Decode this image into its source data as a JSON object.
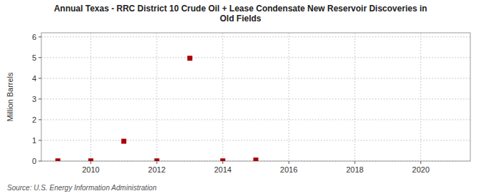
{
  "chart_data": {
    "type": "scatter",
    "title": "Annual Texas - RRC District 10 Crude Oil + Lease Condensate New Reservoir Discoveries in\nOld Fields",
    "ylabel": "Million Barrels",
    "source": "Source: U.S. Energy Information Administration",
    "x": [
      2009,
      2010,
      2011,
      2012,
      2013,
      2014,
      2015
    ],
    "values": [
      0.01,
      0.01,
      0.96,
      0.01,
      4.97,
      0.01,
      0.05
    ],
    "color": "#aa0000",
    "marker": "square",
    "xlim": [
      2008.5,
      2021.5
    ],
    "ylim": [
      0,
      6.2
    ],
    "xticks": [
      2010,
      2012,
      2014,
      2016,
      2018,
      2020
    ],
    "yticks": [
      0,
      1,
      2,
      3,
      4,
      5,
      6
    ],
    "grid": true
  }
}
